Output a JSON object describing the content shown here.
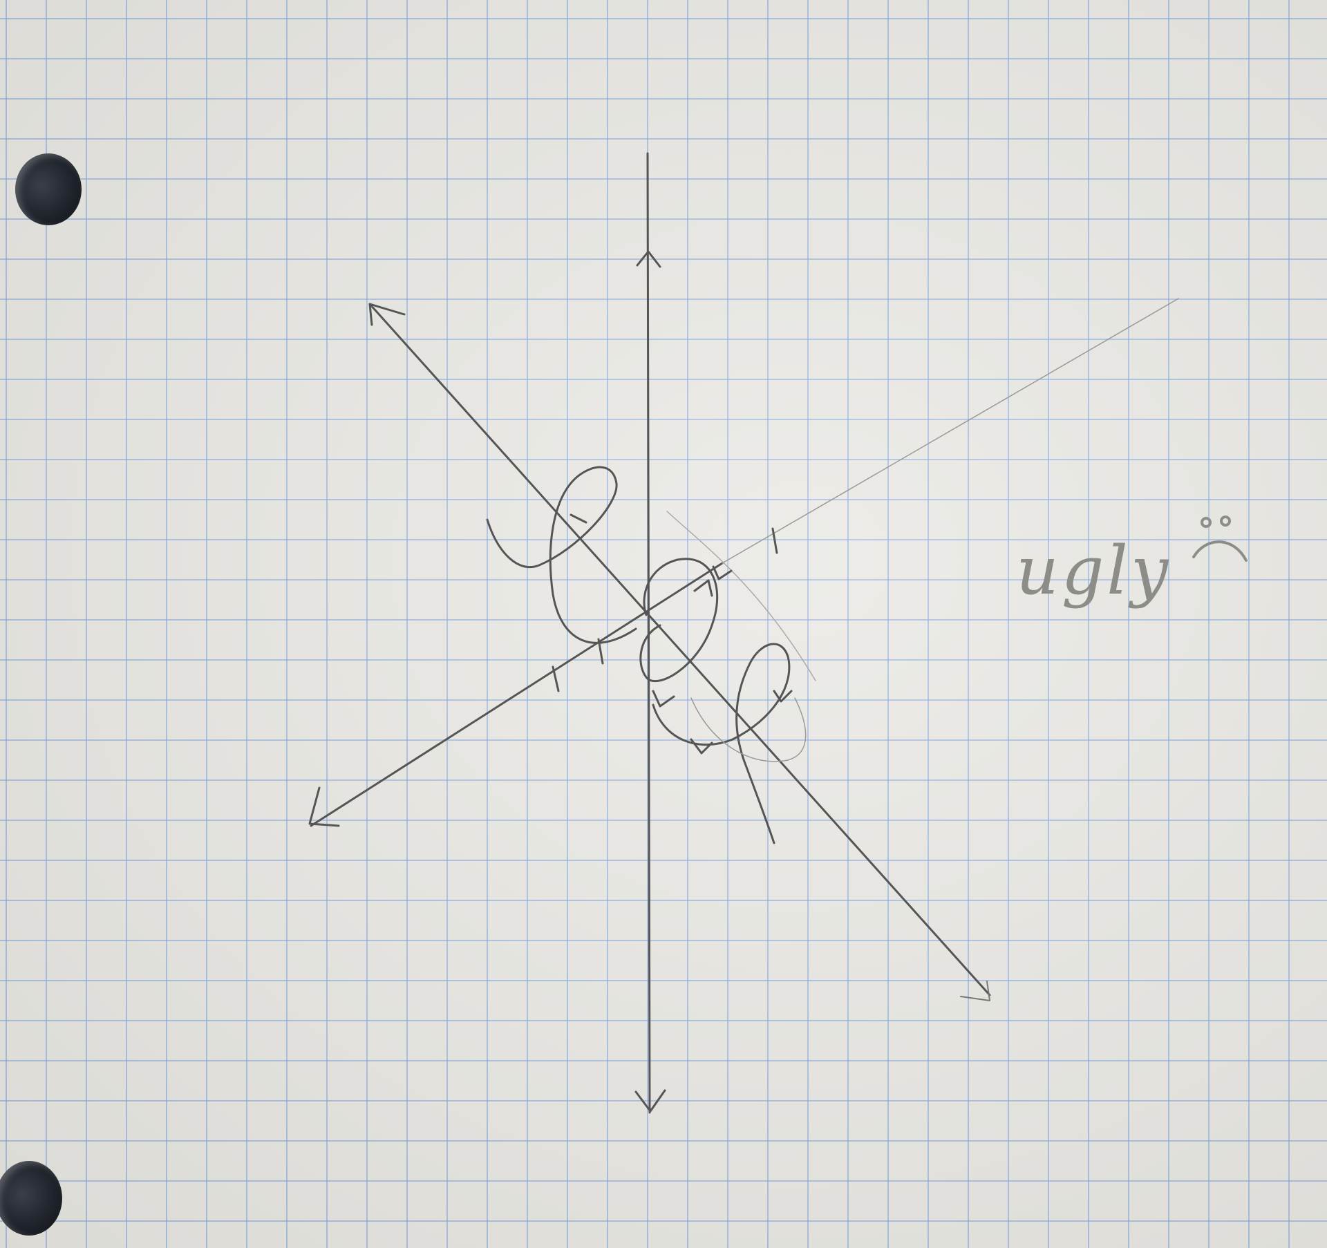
{
  "note": {
    "text": "ugly",
    "emoticon": "sad-face-icon"
  },
  "colors": {
    "paper": "#e9e8e3",
    "grid": "#78a0dc",
    "pencil": "#555555",
    "note": "#8d8d88"
  }
}
